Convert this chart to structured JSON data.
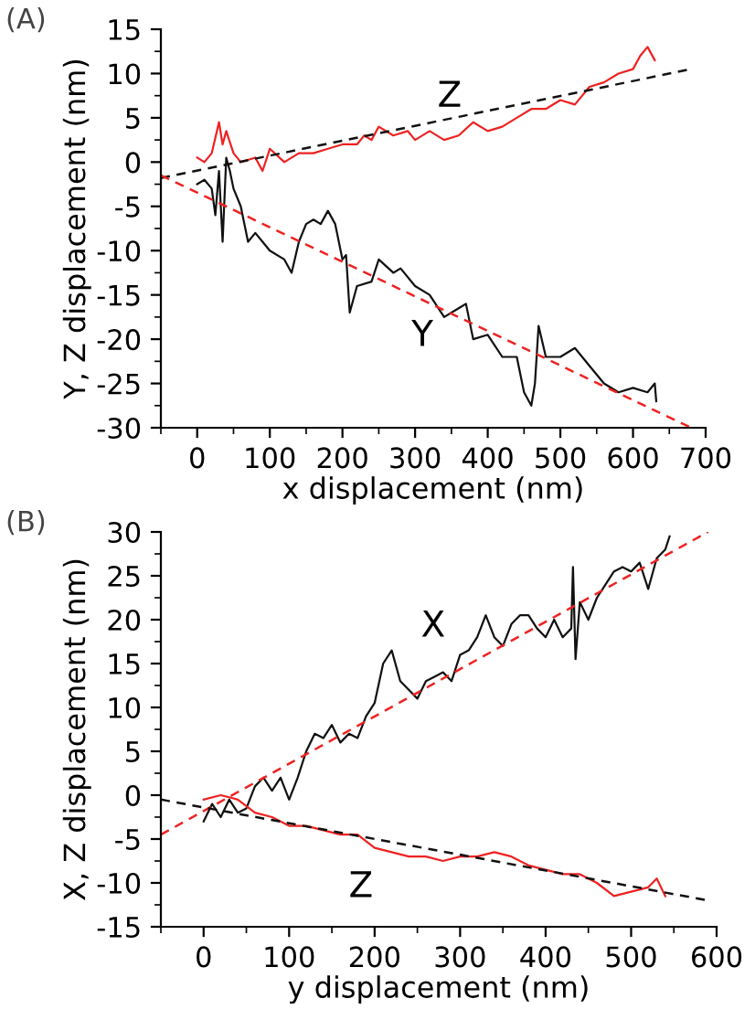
{
  "chart_data": [
    {
      "type": "line",
      "title": "(A)",
      "xlabel": "x displacement (nm)",
      "ylabel": "Y, Z displacement (nm)",
      "xlim": [
        -50,
        700
      ],
      "ylim": [
        -30,
        15
      ],
      "xticks": [
        0,
        100,
        200,
        300,
        400,
        500,
        600,
        700
      ],
      "yticks": [
        -30,
        -25,
        -20,
        -15,
        -10,
        -5,
        0,
        5,
        10,
        15
      ],
      "series": [
        {
          "color": "#ee2222",
          "line_style": "solid",
          "x": [
            0,
            10,
            20,
            30,
            35,
            40,
            50,
            60,
            80,
            90,
            100,
            120,
            140,
            160,
            180,
            200,
            220,
            230,
            240,
            250,
            270,
            290,
            300,
            320,
            340,
            360,
            380,
            400,
            420,
            440,
            460,
            480,
            500,
            520,
            540,
            560,
            580,
            600,
            610,
            620,
            630
          ],
          "values": [
            0.5,
            0,
            1,
            4.5,
            2,
            3.5,
            1,
            0,
            0.5,
            -1,
            1.5,
            0,
            1,
            1,
            1.5,
            2,
            2,
            3,
            2.5,
            4,
            3,
            3.5,
            2.5,
            3.5,
            2.5,
            3,
            4.5,
            3.5,
            4,
            5,
            6,
            6,
            7,
            6.5,
            8.5,
            9,
            10,
            10.5,
            12,
            13,
            11.5
          ]
        },
        {
          "color": "#111111",
          "line_style": "solid",
          "x": [
            0,
            10,
            20,
            25,
            30,
            35,
            40,
            45,
            50,
            60,
            70,
            80,
            90,
            100,
            120,
            130,
            140,
            150,
            160,
            170,
            180,
            190,
            200,
            205,
            210,
            220,
            240,
            250,
            270,
            280,
            300,
            320,
            340,
            360,
            370,
            380,
            400,
            420,
            440,
            450,
            460,
            465,
            470,
            480,
            500,
            520,
            540,
            560,
            580,
            600,
            620,
            630,
            632
          ],
          "values": [
            -2.5,
            -2,
            -3,
            -6,
            -1,
            -9,
            0.5,
            -1,
            -3,
            -5,
            -9,
            -8,
            -9,
            -10,
            -11,
            -12.5,
            -9,
            -7,
            -6.5,
            -7,
            -5.5,
            -7,
            -11,
            -10.5,
            -17,
            -14,
            -13.5,
            -11,
            -12.5,
            -12,
            -14,
            -15,
            -17.5,
            -16.5,
            -16,
            -20,
            -19.5,
            -22,
            -22,
            -26,
            -27.5,
            -25,
            -18.5,
            -22,
            -22,
            -21,
            -23,
            -25,
            -26,
            -25.5,
            -26,
            -25,
            -27
          ]
        },
        {
          "color": "#111111",
          "line_style": "dashed",
          "x": [
            -50,
            680
          ],
          "values": [
            -1.8,
            10.5
          ]
        },
        {
          "color": "#ee2222",
          "line_style": "dashed",
          "x": [
            -50,
            680
          ],
          "values": [
            -1.5,
            -30
          ]
        }
      ],
      "annotations": [
        "Z",
        "Y"
      ]
    },
    {
      "type": "line",
      "title": "(B)",
      "xlabel": "y displacement (nm)",
      "ylabel": "X, Z displacement (nm)",
      "xlim": [
        -50,
        600
      ],
      "ylim": [
        -15,
        30
      ],
      "xticks": [
        0,
        100,
        200,
        300,
        400,
        500,
        600
      ],
      "yticks": [
        -15,
        -10,
        -5,
        0,
        5,
        10,
        15,
        20,
        25,
        30
      ],
      "series": [
        {
          "color": "#111111",
          "line_style": "solid",
          "x": [
            0,
            10,
            20,
            30,
            40,
            50,
            60,
            70,
            80,
            90,
            100,
            110,
            120,
            130,
            140,
            150,
            160,
            170,
            180,
            190,
            200,
            210,
            220,
            230,
            240,
            250,
            260,
            270,
            280,
            290,
            300,
            310,
            320,
            330,
            340,
            350,
            360,
            370,
            380,
            390,
            400,
            410,
            420,
            430,
            432,
            435,
            440,
            450,
            460,
            470,
            480,
            490,
            500,
            510,
            520,
            530,
            540,
            545
          ],
          "values": [
            -3,
            -1,
            -2.5,
            -0.5,
            -2,
            -1.5,
            1,
            2,
            0.5,
            2,
            -0.5,
            2,
            5,
            7,
            6.5,
            8,
            6,
            7,
            6.5,
            9,
            10.5,
            15,
            16.5,
            13,
            12,
            11,
            13,
            13.5,
            14,
            13,
            16,
            16.5,
            18,
            20.5,
            18,
            17,
            19.5,
            20.5,
            20.5,
            19,
            18,
            20,
            18,
            19,
            26,
            15.5,
            22,
            20,
            22.5,
            24,
            25.5,
            26,
            25.5,
            26.5,
            23.5,
            27,
            28,
            29.5
          ]
        },
        {
          "color": "#ee2222",
          "line_style": "solid",
          "x": [
            0,
            20,
            40,
            60,
            80,
            100,
            120,
            140,
            160,
            180,
            200,
            220,
            240,
            260,
            280,
            300,
            320,
            340,
            360,
            380,
            400,
            420,
            440,
            460,
            480,
            500,
            520,
            530,
            540
          ],
          "values": [
            -0.5,
            0,
            -0.5,
            -2,
            -2.5,
            -3.5,
            -3.5,
            -4,
            -4.5,
            -4.5,
            -6,
            -6.5,
            -7,
            -7,
            -7.5,
            -7,
            -7,
            -6.5,
            -7,
            -8,
            -8.5,
            -9,
            -9,
            -10,
            -11.5,
            -11,
            -10.5,
            -9.5,
            -11.5
          ]
        },
        {
          "color": "#ee2222",
          "line_style": "dashed",
          "x": [
            -50,
            590
          ],
          "values": [
            -4.5,
            30
          ]
        },
        {
          "color": "#111111",
          "line_style": "dashed",
          "x": [
            -50,
            590
          ],
          "values": [
            -0.5,
            -12
          ]
        }
      ],
      "annotations": [
        "X",
        "Z"
      ]
    }
  ]
}
